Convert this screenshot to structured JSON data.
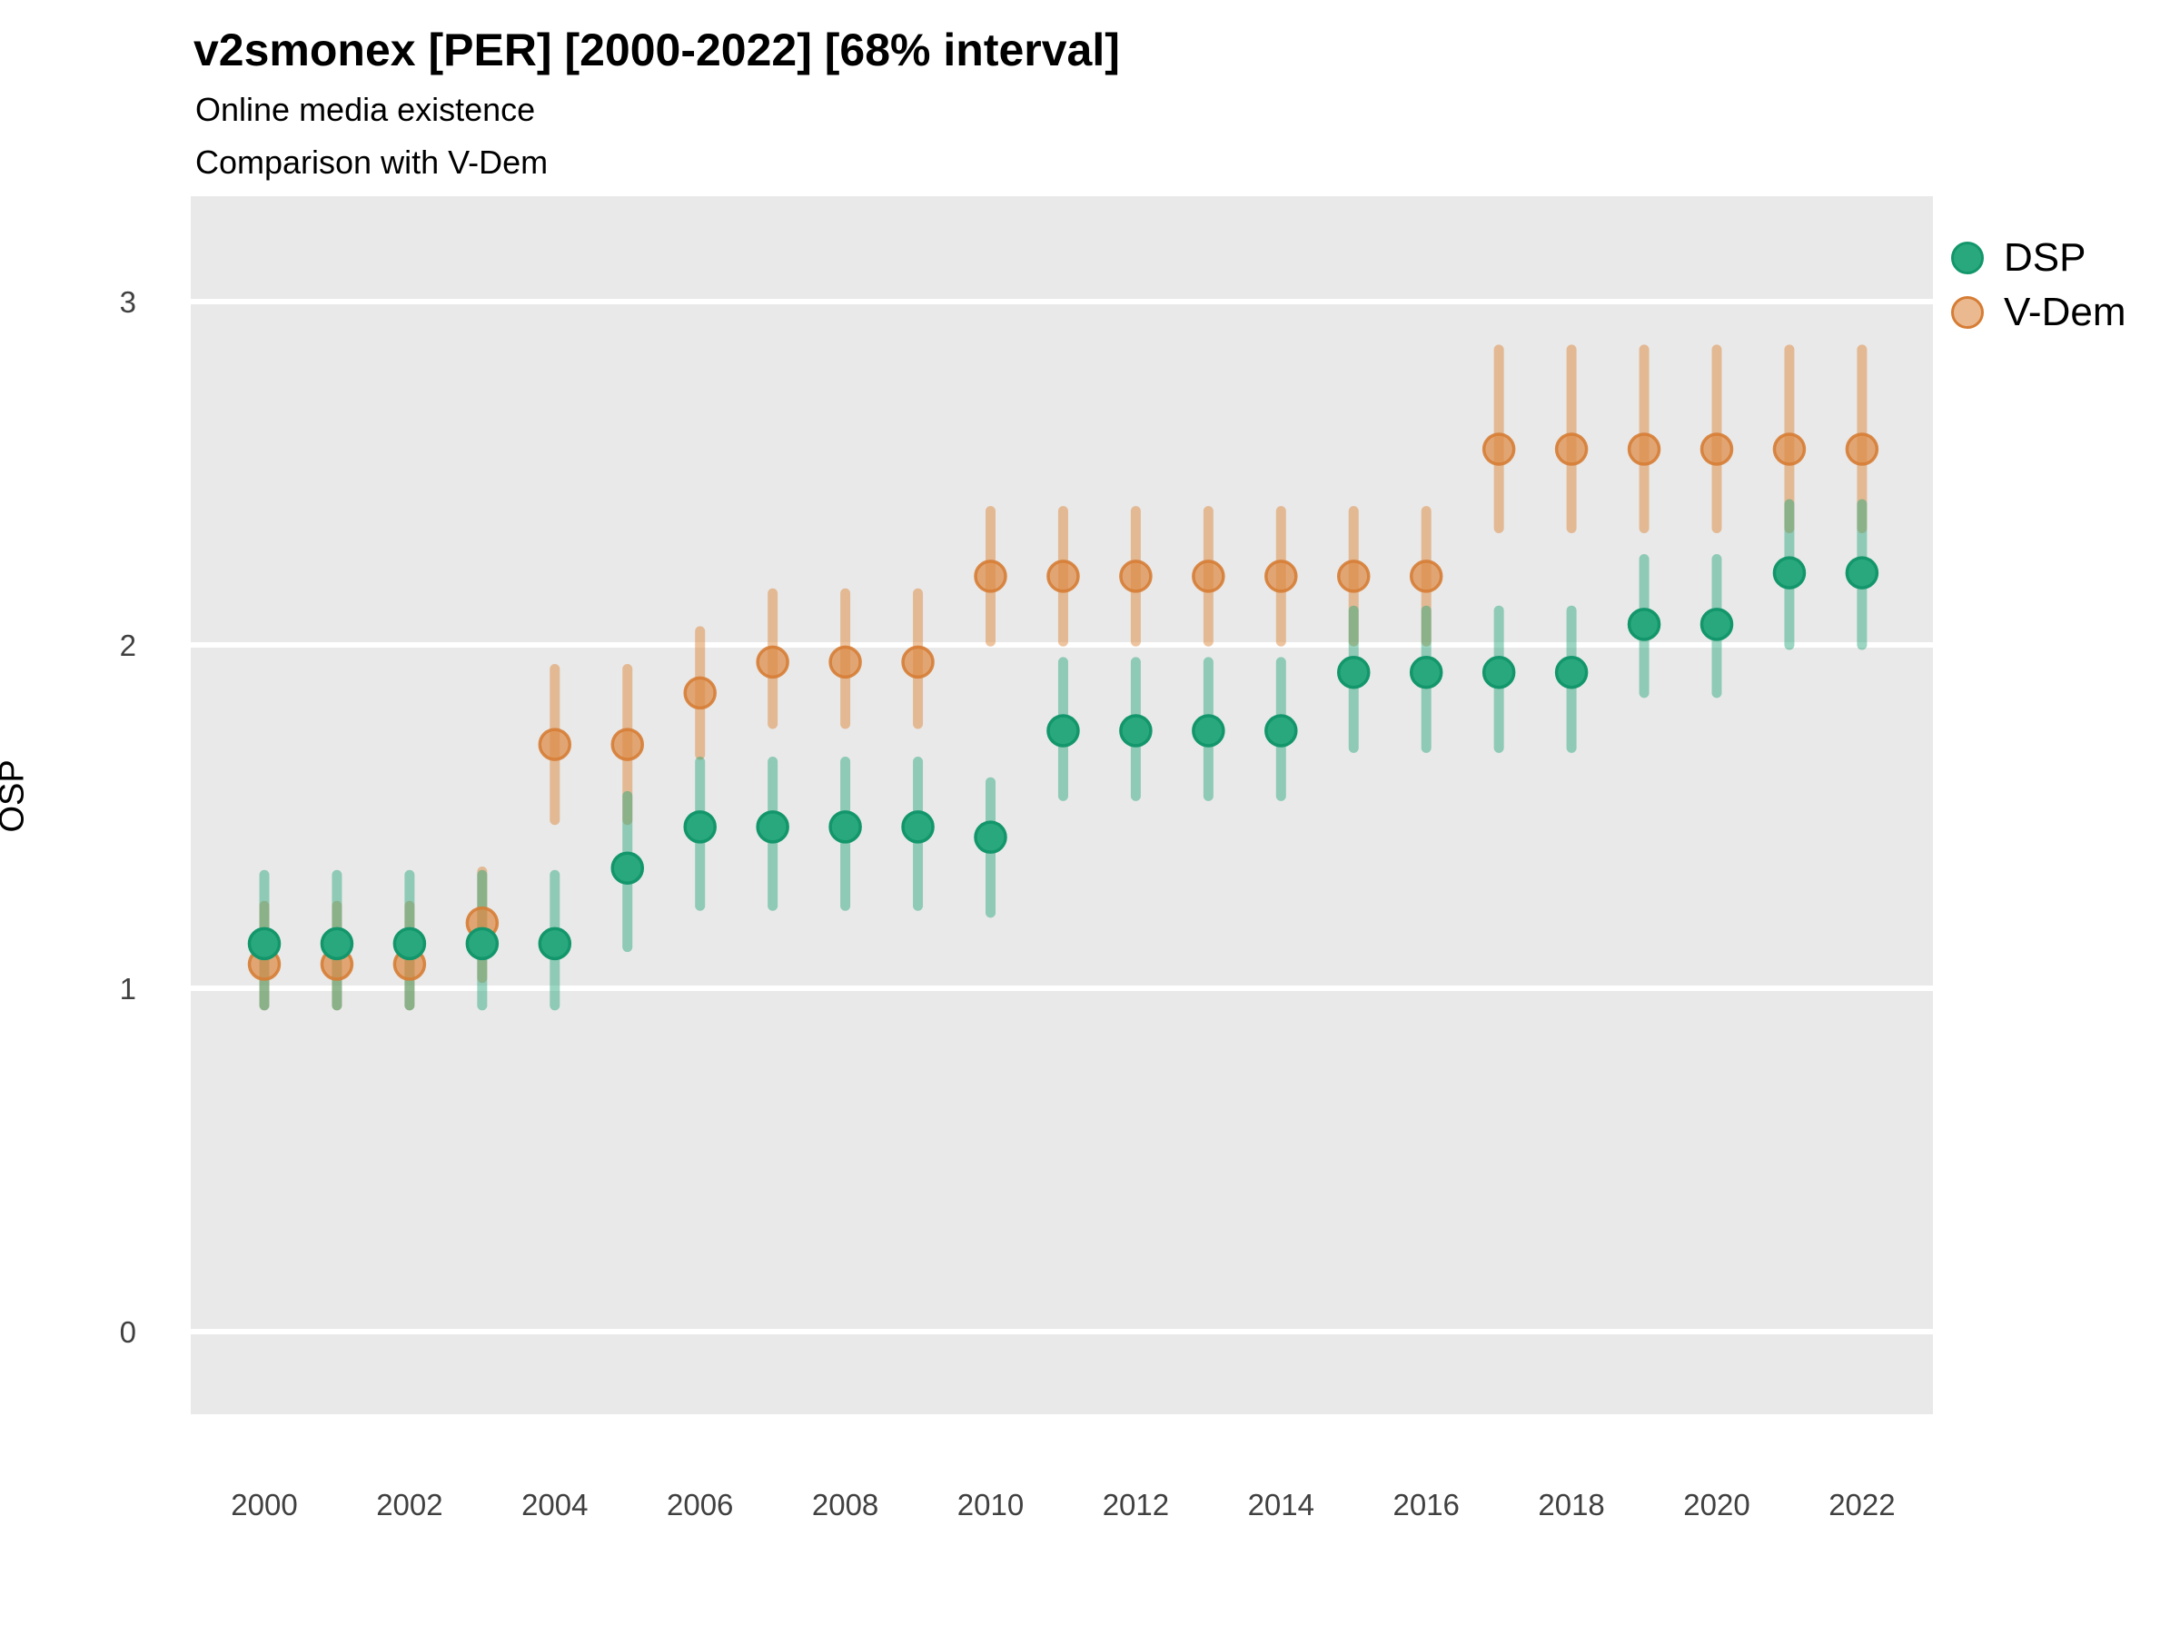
{
  "header": {
    "title": "v2smonex [PER] [2000-2022] [68% interval]",
    "subtitle": "Online media existence",
    "comparison": "Comparison with V-Dem"
  },
  "axes": {
    "y_title": "OSP",
    "y_ticks": [
      0,
      1,
      2,
      3
    ],
    "x_ticks": [
      2000,
      2002,
      2004,
      2006,
      2008,
      2010,
      2012,
      2014,
      2016,
      2018,
      2020,
      2022
    ]
  },
  "legend": {
    "items": [
      {
        "label": "DSP"
      },
      {
        "label": "V-Dem"
      }
    ]
  },
  "colors": {
    "dsp_point": "#29a87d",
    "dsp_stroke": "#13966b",
    "dsp_bar": "rgba(41,168,125,0.47)",
    "vdem_point": "#de8b46",
    "vdem_point_opacity": "0.72",
    "vdem_stroke": "#d67d35",
    "vdem_bar": "rgba(221,138,64,0.5)",
    "panel_bg": "#e9e9e9",
    "gridline": "#ffffff",
    "tick_text": "#404040"
  },
  "chart_data": {
    "type": "pointrange",
    "title": "v2smonex [PER] [2000-2022] [68% interval]",
    "subtitle": "Online media existence",
    "caption": "Comparison with V-Dem",
    "interval": "68%",
    "xlabel": "",
    "ylabel": "OSP",
    "ylim": [
      -0.24,
      3.31
    ],
    "xlim": [
      1999,
      2023
    ],
    "grid": "white major gridlines on gray panel",
    "legend_position": "right",
    "x": [
      2000,
      2001,
      2002,
      2003,
      2004,
      2005,
      2006,
      2007,
      2008,
      2009,
      2010,
      2011,
      2012,
      2013,
      2014,
      2015,
      2016,
      2017,
      2018,
      2019,
      2020,
      2021,
      2022
    ],
    "series": [
      {
        "name": "DSP",
        "means": [
          1.13,
          1.13,
          1.13,
          1.13,
          1.13,
          1.35,
          1.47,
          1.47,
          1.47,
          1.47,
          1.44,
          1.75,
          1.75,
          1.75,
          1.75,
          1.92,
          1.92,
          1.92,
          1.92,
          2.06,
          2.06,
          2.21,
          2.21
        ],
        "lower": [
          0.95,
          0.95,
          0.95,
          0.95,
          0.95,
          1.12,
          1.24,
          1.24,
          1.24,
          1.24,
          1.22,
          1.56,
          1.56,
          1.56,
          1.56,
          1.7,
          1.7,
          1.7,
          1.7,
          1.86,
          1.86,
          2.0,
          2.0
        ],
        "upper": [
          1.33,
          1.33,
          1.33,
          1.33,
          1.33,
          1.56,
          1.66,
          1.66,
          1.66,
          1.66,
          1.6,
          1.95,
          1.95,
          1.95,
          1.95,
          2.1,
          2.1,
          2.1,
          2.1,
          2.25,
          2.25,
          2.41,
          2.41
        ]
      },
      {
        "name": "V-Dem",
        "means": [
          1.07,
          1.07,
          1.07,
          1.19,
          1.71,
          1.71,
          1.86,
          1.95,
          1.95,
          1.95,
          2.2,
          2.2,
          2.2,
          2.2,
          2.2,
          2.2,
          2.2,
          2.57,
          2.57,
          2.57,
          2.57,
          2.57,
          2.57
        ],
        "lower": [
          0.95,
          0.95,
          0.95,
          1.03,
          1.49,
          1.49,
          1.68,
          1.77,
          1.77,
          1.77,
          2.01,
          2.01,
          2.01,
          2.01,
          2.01,
          2.01,
          2.01,
          2.34,
          2.34,
          2.34,
          2.34,
          2.34,
          2.34
        ],
        "upper": [
          1.24,
          1.24,
          1.24,
          1.34,
          1.93,
          1.93,
          2.04,
          2.15,
          2.15,
          2.15,
          2.39,
          2.39,
          2.39,
          2.39,
          2.39,
          2.39,
          2.39,
          2.86,
          2.86,
          2.86,
          2.86,
          2.86,
          2.86
        ]
      }
    ]
  }
}
